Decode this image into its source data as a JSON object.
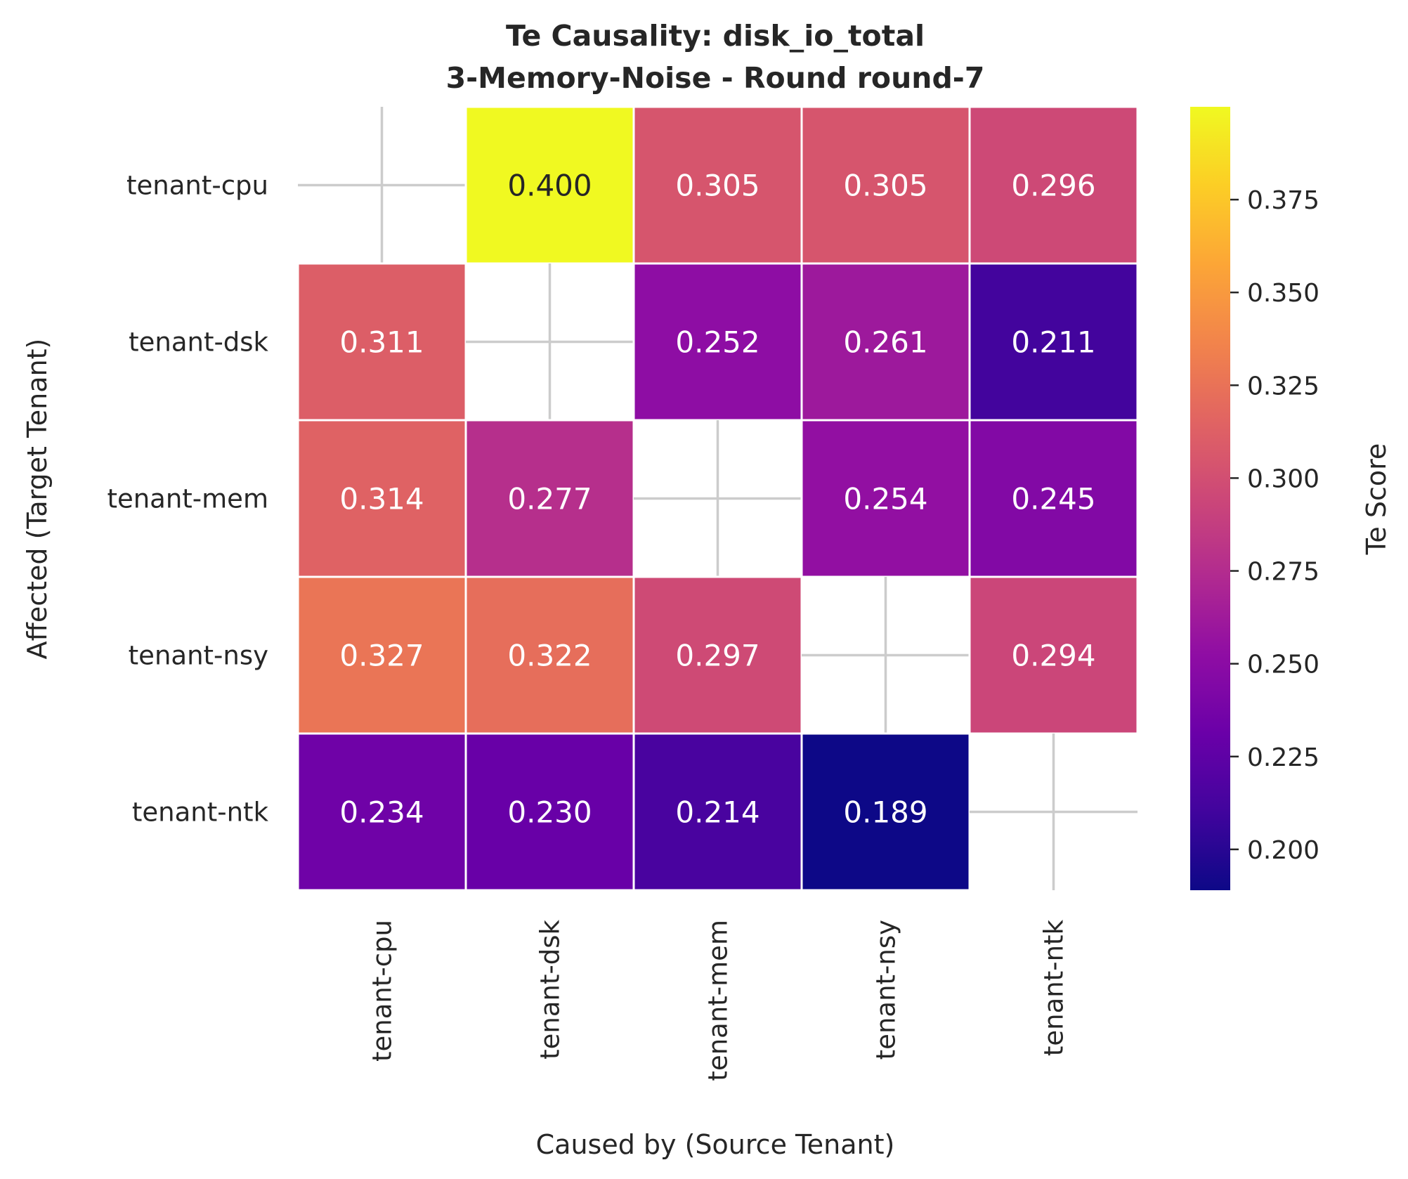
{
  "chart_data": {
    "type": "heatmap",
    "title": "Te Causality: disk_io_total",
    "subtitle": "3-Memory-Noise - Round round-7",
    "xlabel": "Caused by (Source Tenant)",
    "ylabel": "Affected (Target Tenant)",
    "x_categories": [
      "tenant-cpu",
      "tenant-dsk",
      "tenant-mem",
      "tenant-nsy",
      "tenant-ntk"
    ],
    "y_categories": [
      "tenant-cpu",
      "tenant-dsk",
      "tenant-mem",
      "tenant-nsy",
      "tenant-ntk"
    ],
    "values": [
      [
        null,
        0.4,
        0.305,
        0.305,
        0.296
      ],
      [
        0.311,
        null,
        0.252,
        0.261,
        0.211
      ],
      [
        0.314,
        0.277,
        null,
        0.254,
        0.245
      ],
      [
        0.327,
        0.322,
        0.297,
        null,
        0.294
      ],
      [
        0.234,
        0.23,
        0.214,
        0.189,
        null
      ]
    ],
    "value_format": "0.000",
    "colormap": "plasma",
    "colorbar": {
      "label": "Te Score",
      "min": 0.189,
      "max": 0.4,
      "ticks": [
        "0.200",
        "0.225",
        "0.250",
        "0.275",
        "0.300",
        "0.325",
        "0.350",
        "0.375"
      ]
    },
    "colors": {
      "diagonal_mark": "#cccccc",
      "cell_border": "#ffffff",
      "light_text": "#ffffff",
      "dark_text": "#262626"
    }
  }
}
